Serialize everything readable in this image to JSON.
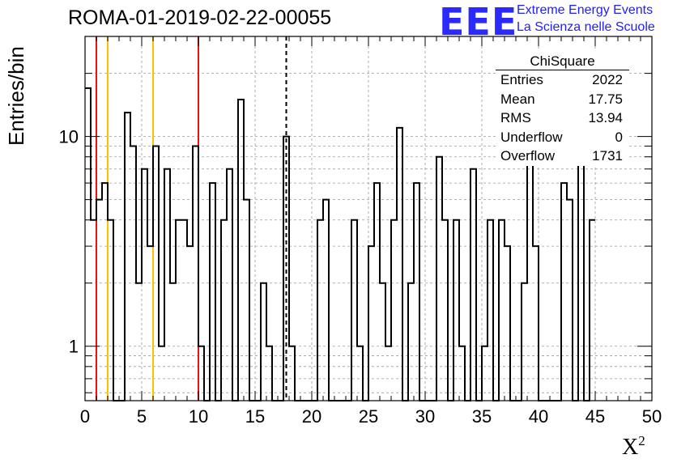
{
  "header": {
    "title": "ROMA-01-2019-02-22-00055",
    "logo_text": "EEE",
    "logo_line1": "Extreme Energy Events",
    "logo_line2": "La Scienza nelle Scuole"
  },
  "colors": {
    "histogram": "#000000",
    "red_line": "#ee1111",
    "yellow_line": "#f5c400",
    "grid": "#999999",
    "logo": "#2020ff"
  },
  "stats": {
    "title": "ChiSquare",
    "rows": [
      {
        "label": "Entries",
        "value": "2022"
      },
      {
        "label": "Mean",
        "value": "17.75"
      },
      {
        "label": "RMS",
        "value": "13.94"
      },
      {
        "label": "Underflow",
        "value": "0"
      },
      {
        "label": "Overflow",
        "value": "1731"
      }
    ]
  },
  "chart_data": {
    "type": "histogram",
    "title": "ROMA-01-2019-02-22-00055",
    "xlabel": "X²",
    "ylabel": "Entries/bin",
    "xlim": [
      0,
      50
    ],
    "ylim": [
      0.55,
      30
    ],
    "yscale": "log",
    "grid": true,
    "bin_width": 0.5,
    "x_ticks": [
      0,
      5,
      10,
      15,
      20,
      25,
      30,
      35,
      40,
      45,
      50
    ],
    "y_ticks": [
      1,
      10
    ],
    "counts": [
      17,
      4,
      5,
      6,
      4,
      0,
      0,
      13,
      9,
      2,
      7,
      3,
      9,
      1,
      7,
      2,
      4,
      4,
      3,
      9,
      1,
      0,
      6,
      0,
      4,
      7,
      0,
      15,
      5,
      0,
      0,
      2,
      1,
      0,
      0,
      10,
      1,
      0,
      0,
      0,
      0,
      4,
      5,
      0,
      0,
      0,
      0,
      4,
      1,
      0,
      3,
      6,
      2,
      1,
      4,
      11,
      0,
      2,
      6,
      0,
      0,
      0,
      8,
      4,
      0,
      4,
      1,
      0,
      7,
      0,
      1,
      4,
      0,
      4,
      3,
      0,
      0,
      2,
      9,
      3,
      0,
      0,
      0,
      0,
      6,
      5,
      0,
      8,
      0,
      4
    ],
    "vertical_lines": [
      {
        "x": 1,
        "color": "red",
        "style": "solid"
      },
      {
        "x": 2,
        "color": "yellow",
        "style": "solid"
      },
      {
        "x": 6,
        "color": "yellow",
        "style": "solid"
      },
      {
        "x": 10,
        "color": "red",
        "style": "solid"
      },
      {
        "x": 17.75,
        "color": "black",
        "style": "dashed"
      }
    ]
  }
}
